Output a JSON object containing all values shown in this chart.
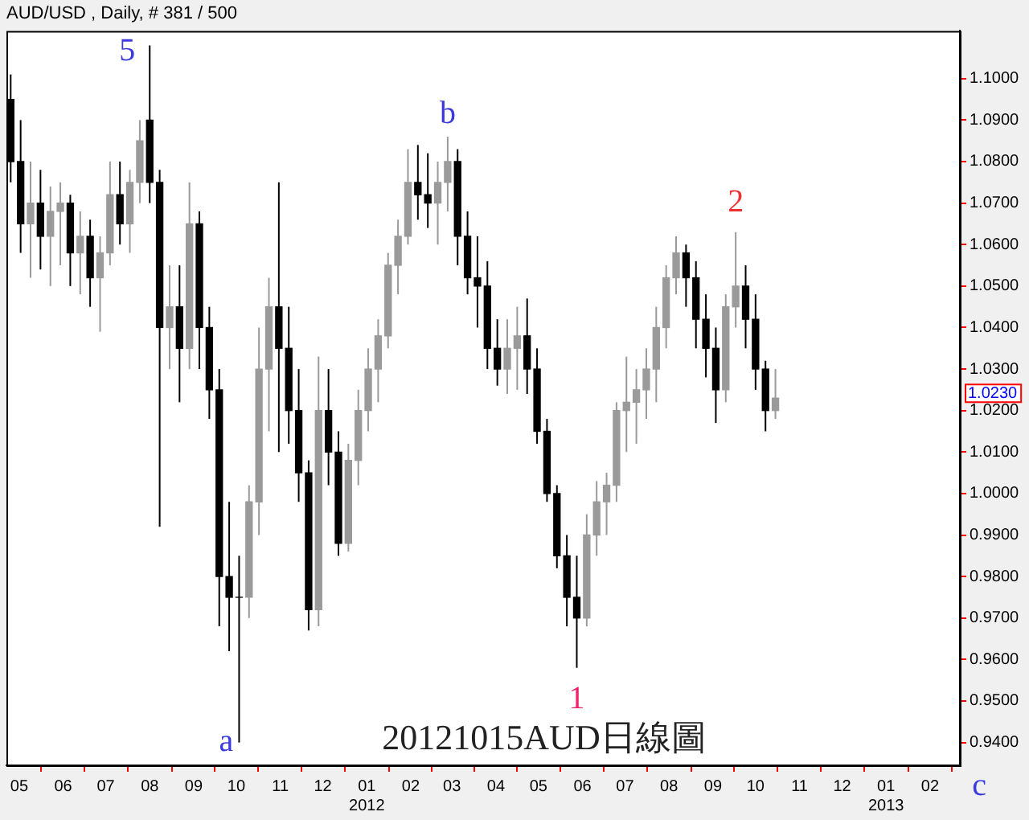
{
  "chart_data": {
    "type": "candlestick",
    "title": "AUD/USD , Daily, # 381 / 500",
    "subtitle": "20121015AUD日線圖",
    "colors": [
      "#000000",
      "#000000",
      "#9a9a9a",
      "#000000",
      "#9a9a9a",
      "#9a9a9a",
      "#000000",
      "#9a9a9a",
      "#000000",
      "#9a9a9a",
      "#9a9a9a",
      "#000000",
      "#9a9a9a",
      "#9a9a9a",
      "#000000",
      "#000000",
      "#9a9a9a",
      "#000000",
      "#9a9a9a",
      "#000000",
      "#000000",
      "#000000",
      "#000000",
      "#000000",
      "#9a9a9a",
      "#9a9a9a",
      "#9a9a9a",
      "#000000",
      "#000000",
      "#000000",
      "#000000",
      "#9a9a9a",
      "#000000",
      "#000000",
      "#9a9a9a",
      "#9a9a9a",
      "#9a9a9a",
      "#9a9a9a",
      "#9a9a9a",
      "#9a9a9a",
      "#9a9a9a",
      "#000000",
      "#000000",
      "#9a9a9a",
      "#9a9a9a",
      "#000000",
      "#000000",
      "#000000",
      "#000000",
      "#000000",
      "#9a9a9a",
      "#9a9a9a",
      "#000000",
      "#000000",
      "#000000",
      "#000000",
      "#000000",
      "#000000",
      "#9a9a9a",
      "#9a9a9a",
      "#9a9a9a",
      "#9a9a9a",
      "#9a9a9a",
      "#9a9a9a",
      "#9a9a9a",
      "#9a9a9a",
      "#9a9a9a",
      "#9a9a9a",
      "#000000",
      "#000000",
      "#000000",
      "#000000",
      "#9a9a9a",
      "#9a9a9a",
      "#000000",
      "#000000",
      "#000000",
      "#9a9a9a"
    ],
    "x": [
      "2011-04-25",
      "2011-05-02",
      "2011-05-09",
      "2011-05-16",
      "2011-05-23",
      "2011-05-30",
      "2011-06-06",
      "2011-06-13",
      "2011-06-20",
      "2011-06-27",
      "2011-07-04",
      "2011-07-11",
      "2011-07-18",
      "2011-07-25",
      "2011-08-01",
      "2011-08-08",
      "2011-08-15",
      "2011-08-22",
      "2011-08-29",
      "2011-09-05",
      "2011-09-12",
      "2011-09-19",
      "2011-09-26",
      "2011-10-03",
      "2011-10-10",
      "2011-10-17",
      "2011-10-24",
      "2011-10-31",
      "2011-11-07",
      "2011-11-14",
      "2011-11-21",
      "2011-11-28",
      "2011-12-05",
      "2011-12-12",
      "2011-12-19",
      "2011-12-26",
      "2012-01-02",
      "2012-01-09",
      "2012-01-16",
      "2012-01-23",
      "2012-01-30",
      "2012-02-06",
      "2012-02-13",
      "2012-02-20",
      "2012-02-27",
      "2012-03-05",
      "2012-03-12",
      "2012-03-19",
      "2012-03-26",
      "2012-04-02",
      "2012-04-09",
      "2012-04-16",
      "2012-04-23",
      "2012-04-30",
      "2012-05-07",
      "2012-05-14",
      "2012-05-21",
      "2012-05-28",
      "2012-06-04",
      "2012-06-11",
      "2012-06-18",
      "2012-06-25",
      "2012-07-02",
      "2012-07-09",
      "2012-07-16",
      "2012-07-23",
      "2012-07-30",
      "2012-08-06",
      "2012-08-13",
      "2012-08-20",
      "2012-08-27",
      "2012-09-03",
      "2012-09-10",
      "2012-09-17",
      "2012-09-24",
      "2012-10-01",
      "2012-10-08",
      "2012-10-15"
    ],
    "ohlc": [
      [
        1.095,
        1.101,
        1.075,
        1.08
      ],
      [
        1.08,
        1.09,
        1.058,
        1.065
      ],
      [
        1.065,
        1.08,
        1.052,
        1.07
      ],
      [
        1.07,
        1.078,
        1.054,
        1.062
      ],
      [
        1.062,
        1.074,
        1.05,
        1.068
      ],
      [
        1.068,
        1.075,
        1.055,
        1.07
      ],
      [
        1.07,
        1.072,
        1.05,
        1.058
      ],
      [
        1.058,
        1.068,
        1.048,
        1.062
      ],
      [
        1.062,
        1.066,
        1.045,
        1.052
      ],
      [
        1.052,
        1.062,
        1.039,
        1.058
      ],
      [
        1.058,
        1.08,
        1.055,
        1.072
      ],
      [
        1.072,
        1.08,
        1.06,
        1.065
      ],
      [
        1.065,
        1.078,
        1.058,
        1.075
      ],
      [
        1.075,
        1.09,
        1.07,
        1.085
      ],
      [
        1.09,
        1.108,
        1.07,
        1.075
      ],
      [
        1.075,
        1.078,
        0.992,
        1.04
      ],
      [
        1.04,
        1.055,
        1.03,
        1.045
      ],
      [
        1.045,
        1.055,
        1.022,
        1.035
      ],
      [
        1.035,
        1.075,
        1.03,
        1.065
      ],
      [
        1.065,
        1.068,
        1.03,
        1.04
      ],
      [
        1.04,
        1.045,
        1.018,
        1.025
      ],
      [
        1.025,
        1.03,
        0.968,
        0.98
      ],
      [
        0.98,
        0.998,
        0.962,
        0.975
      ],
      [
        0.975,
        0.985,
        0.94,
        0.975
      ],
      [
        0.975,
        1.002,
        0.97,
        0.998
      ],
      [
        0.998,
        1.04,
        0.99,
        1.03
      ],
      [
        1.03,
        1.052,
        1.015,
        1.045
      ],
      [
        1.045,
        1.075,
        1.01,
        1.035
      ],
      [
        1.035,
        1.045,
        1.012,
        1.02
      ],
      [
        1.02,
        1.03,
        0.998,
        1.005
      ],
      [
        1.005,
        1.008,
        0.967,
        0.972
      ],
      [
        0.972,
        1.033,
        0.968,
        1.02
      ],
      [
        1.02,
        1.03,
        1.002,
        1.01
      ],
      [
        1.01,
        1.015,
        0.985,
        0.988
      ],
      [
        0.988,
        1.012,
        0.986,
        1.008
      ],
      [
        1.008,
        1.025,
        1.002,
        1.02
      ],
      [
        1.02,
        1.035,
        1.015,
        1.03
      ],
      [
        1.03,
        1.042,
        1.022,
        1.038
      ],
      [
        1.038,
        1.058,
        1.035,
        1.055
      ],
      [
        1.055,
        1.066,
        1.048,
        1.062
      ],
      [
        1.062,
        1.083,
        1.06,
        1.075
      ],
      [
        1.075,
        1.084,
        1.066,
        1.072
      ],
      [
        1.072,
        1.082,
        1.064,
        1.07
      ],
      [
        1.07,
        1.08,
        1.06,
        1.075
      ],
      [
        1.075,
        1.086,
        1.068,
        1.08
      ],
      [
        1.08,
        1.083,
        1.055,
        1.062
      ],
      [
        1.062,
        1.068,
        1.048,
        1.052
      ],
      [
        1.052,
        1.062,
        1.04,
        1.05
      ],
      [
        1.05,
        1.056,
        1.03,
        1.035
      ],
      [
        1.035,
        1.042,
        1.026,
        1.03
      ],
      [
        1.03,
        1.042,
        1.024,
        1.035
      ],
      [
        1.035,
        1.045,
        1.025,
        1.038
      ],
      [
        1.038,
        1.047,
        1.024,
        1.03
      ],
      [
        1.03,
        1.035,
        1.012,
        1.015
      ],
      [
        1.015,
        1.018,
        0.998,
        1.0
      ],
      [
        1.0,
        1.002,
        0.982,
        0.985
      ],
      [
        0.985,
        0.99,
        0.968,
        0.975
      ],
      [
        0.975,
        0.985,
        0.958,
        0.97
      ],
      [
        0.97,
        0.995,
        0.968,
        0.99
      ],
      [
        0.99,
        1.003,
        0.985,
        0.998
      ],
      [
        0.998,
        1.005,
        0.99,
        1.002
      ],
      [
        1.002,
        1.022,
        0.998,
        1.02
      ],
      [
        1.02,
        1.033,
        1.01,
        1.022
      ],
      [
        1.022,
        1.03,
        1.012,
        1.025
      ],
      [
        1.025,
        1.035,
        1.018,
        1.03
      ],
      [
        1.03,
        1.045,
        1.022,
        1.04
      ],
      [
        1.04,
        1.055,
        1.035,
        1.052
      ],
      [
        1.052,
        1.062,
        1.048,
        1.058
      ],
      [
        1.058,
        1.06,
        1.045,
        1.052
      ],
      [
        1.052,
        1.056,
        1.035,
        1.042
      ],
      [
        1.042,
        1.048,
        1.028,
        1.035
      ],
      [
        1.035,
        1.04,
        1.017,
        1.025
      ],
      [
        1.025,
        1.048,
        1.022,
        1.045
      ],
      [
        1.045,
        1.063,
        1.04,
        1.05
      ],
      [
        1.05,
        1.055,
        1.035,
        1.042
      ],
      [
        1.042,
        1.048,
        1.025,
        1.03
      ],
      [
        1.03,
        1.032,
        1.015,
        1.02
      ],
      [
        1.02,
        1.03,
        1.018,
        1.023
      ]
    ],
    "xlim": [
      "2011-04-22",
      "2013-02-22"
    ],
    "xticks": [
      {
        "value": "2011-05-01",
        "label": "05"
      },
      {
        "value": "2011-06-01",
        "label": "06"
      },
      {
        "value": "2011-07-01",
        "label": "07"
      },
      {
        "value": "2011-08-01",
        "label": "08"
      },
      {
        "value": "2011-09-01",
        "label": "09"
      },
      {
        "value": "2011-10-01",
        "label": "10"
      },
      {
        "value": "2011-11-01",
        "label": "11"
      },
      {
        "value": "2011-12-01",
        "label": "12"
      },
      {
        "value": "2012-01-01",
        "label": "01\n2012"
      },
      {
        "value": "2012-02-01",
        "label": "02"
      },
      {
        "value": "2012-03-01",
        "label": "03"
      },
      {
        "value": "2012-04-01",
        "label": "04"
      },
      {
        "value": "2012-05-01",
        "label": "05"
      },
      {
        "value": "2012-06-01",
        "label": "06"
      },
      {
        "value": "2012-07-01",
        "label": "07"
      },
      {
        "value": "2012-08-01",
        "label": "08"
      },
      {
        "value": "2012-09-01",
        "label": "09"
      },
      {
        "value": "2012-10-01",
        "label": "10"
      },
      {
        "value": "2012-11-01",
        "label": "11"
      },
      {
        "value": "2012-12-01",
        "label": "12"
      },
      {
        "value": "2013-01-01",
        "label": "01\n2013"
      },
      {
        "value": "2013-02-01",
        "label": "02"
      }
    ],
    "ylim": [
      0.9345,
      1.1115
    ],
    "yticks": [
      {
        "value": 0.94,
        "label": "0.9400"
      },
      {
        "value": 0.95,
        "label": "0.9500"
      },
      {
        "value": 0.96,
        "label": "0.9600"
      },
      {
        "value": 0.97,
        "label": "0.9700"
      },
      {
        "value": 0.98,
        "label": "0.9800"
      },
      {
        "value": 0.99,
        "label": "0.9900"
      },
      {
        "value": 1.0,
        "label": "1.0000"
      },
      {
        "value": 1.01,
        "label": "1.0100"
      },
      {
        "value": 1.02,
        "label": "1.0200"
      },
      {
        "value": 1.03,
        "label": "1.0300"
      },
      {
        "value": 1.04,
        "label": "1.0400"
      },
      {
        "value": 1.05,
        "label": "1.0500"
      },
      {
        "value": 1.06,
        "label": "1.0600"
      },
      {
        "value": 1.07,
        "label": "1.0700"
      },
      {
        "value": 1.08,
        "label": "1.0800"
      },
      {
        "value": 1.09,
        "label": "1.0900"
      },
      {
        "value": 1.1,
        "label": "1.1000"
      }
    ],
    "annotations": [
      {
        "text": "5",
        "x": "2011-08-01",
        "y": 1.108
      },
      {
        "text": "a",
        "x": "2011-10-03",
        "y": 0.94
      },
      {
        "text": "b",
        "x": "2012-02-27",
        "y": 1.086
      },
      {
        "text": "1",
        "x": "2012-05-28",
        "y": 0.958
      },
      {
        "text": "2",
        "x": "2012-09-17",
        "y": 1.063
      },
      "1.0230",
      "c"
    ],
    "legend": false,
    "grid": false
  }
}
